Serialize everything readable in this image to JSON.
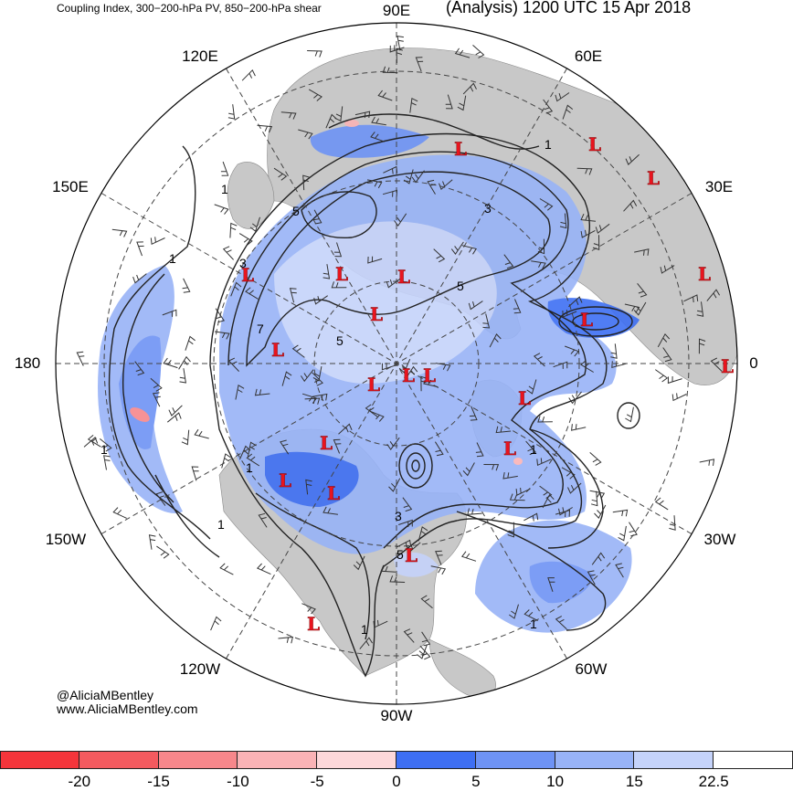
{
  "header": {
    "subtitle": "Coupling Index, 300−200-hPa PV, 850−200-hPa shear",
    "title": "(Analysis) 1200 UTC 15 Apr 2018"
  },
  "credit": {
    "handle": "@AliciaMBentley",
    "website": "www.AliciaMBentley.com"
  },
  "map": {
    "projection": "north polar stereographic",
    "meridian_labels": [
      "90E",
      "60E",
      "30E",
      "0",
      "30W",
      "60W",
      "90W",
      "120W",
      "150W",
      "180",
      "150E",
      "120E"
    ],
    "land_color": "#c8c8c8",
    "ocean_color": "#ffffff",
    "contour_color": "#222222",
    "low_marker_text": "L",
    "low_marker_color": "#e8141e",
    "contour_labels": [
      "1",
      "1",
      "1",
      "1",
      "1",
      "1",
      "1",
      "1",
      "1",
      "3",
      "3",
      "3",
      "5",
      "5",
      "5",
      "5",
      "7"
    ]
  },
  "colorbar": {
    "tick_labels": [
      "-20",
      "-15",
      "-10",
      "-5",
      "0",
      "5",
      "10",
      "15",
      "22.5"
    ],
    "colors": [
      "#f5353b",
      "#f45a5f",
      "#f7878b",
      "#fab3b6",
      "#fdd8da",
      "#3e6ff3",
      "#6e93f5",
      "#98b3f7",
      "#c5d3fa",
      "#ffffff"
    ]
  }
}
